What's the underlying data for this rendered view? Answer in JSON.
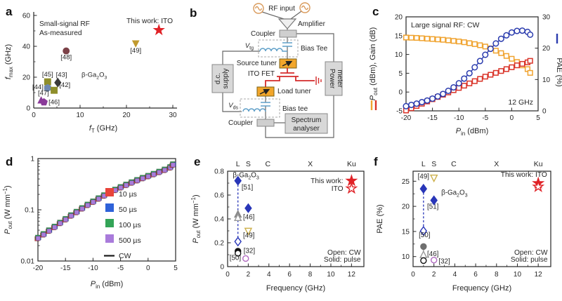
{
  "panels": {
    "a": {
      "letter": "a"
    },
    "b": {
      "letter": "b"
    },
    "c": {
      "letter": "c"
    },
    "d": {
      "letter": "d"
    },
    "e": {
      "letter": "e"
    },
    "f": {
      "letter": "f"
    }
  },
  "diagram": {
    "rf_input": "RF input",
    "amplifier": "Amplifier",
    "coupler_top": "Coupler",
    "bias_tee_top": "Bias Tee",
    "v_tg_main": "V",
    "v_tg_sub": "tg",
    "source_tuner": "Source tuner",
    "ito_fet": "ITO FET",
    "load_tuner": "Load tuner",
    "bias_tee_bottom": "Bias tee",
    "v_ds_main": "V",
    "v_ds_sub": "ds",
    "coupler_bottom": "Coupler",
    "spectrum_line1": "Spectrum",
    "spectrum_line2": "analyser",
    "power_line1": "Power",
    "power_line2": "meter",
    "dc_line1": "d.c.",
    "dc_line2": "supply"
  },
  "chart_data": [
    {
      "panel": "a",
      "type": "scatter",
      "title_lines": [
        "Small-signal RF",
        "As-measured"
      ],
      "legend_text": "This work: ITO",
      "xlabel": [
        {
          "t": "f",
          "i": true
        },
        {
          "t": "T",
          "sub": true
        },
        {
          "t": " (GHz)"
        }
      ],
      "ylabel": [
        {
          "t": "f",
          "i": true
        },
        {
          "t": "max",
          "sub": true
        },
        {
          "t": " (GHz)"
        }
      ],
      "xlim": [
        0,
        30
      ],
      "ylim": [
        0,
        60
      ],
      "xticks": [
        0,
        10,
        20,
        30
      ],
      "xminor": [
        5,
        15,
        25
      ],
      "yticks": [
        0,
        20,
        40,
        60
      ],
      "yminor": [
        10,
        30,
        50
      ],
      "annotation": {
        "x": 10.3,
        "y": 20.3,
        "segs": [
          {
            "t": "β-Ga"
          },
          {
            "t": "2",
            "sub": true
          },
          {
            "t": "O"
          },
          {
            "t": "3",
            "sub": true
          }
        ]
      },
      "points": [
        {
          "x": 7,
          "y": 37,
          "m": "circle",
          "c": "#7b4147",
          "f": 1,
          "ref": "[48]",
          "lx": 7,
          "ly": 31.5,
          "la": "middle"
        },
        {
          "x": 22,
          "y": 42,
          "m": "triangle-down",
          "c": "#c19a2e",
          "f": 1,
          "ref": "[49]",
          "lx": 22,
          "ly": 36,
          "la": "middle"
        },
        {
          "x": 3,
          "y": 17,
          "m": "square",
          "c": "#8e8e2b",
          "f": 1,
          "ref": "[45]",
          "lx": 3,
          "ly": 20.5,
          "la": "middle"
        },
        {
          "x": 5.2,
          "y": 16.5,
          "m": "diamond",
          "c": "#3a3a3a",
          "f": 1,
          "ref": "[43]",
          "lx": 6,
          "ly": 20.3,
          "la": "middle"
        },
        {
          "x": 3,
          "y": 13,
          "m": "hexagon",
          "c": "#6e88b0",
          "f": 1,
          "ref": "[44]",
          "lx": 2.1,
          "ly": 12.2,
          "la": "end"
        },
        {
          "x": 4.4,
          "y": 11.5,
          "m": "square",
          "c": "#8e8e2b",
          "f": 1,
          "ref": "[42]",
          "lx": 5.5,
          "ly": 13.6,
          "la": "start"
        },
        {
          "x": 1.6,
          "y": 4.8,
          "m": "triangle-up",
          "c": "#8a3a99",
          "f": 1,
          "ref": "[47]",
          "lx": 0.9,
          "ly": 8.3,
          "la": "start"
        },
        {
          "x": 2.2,
          "y": 3.8,
          "m": "pentagon",
          "c": "#8a3a99",
          "f": 1,
          "ref": "[46]",
          "lx": 3.2,
          "ly": 2.4,
          "la": "start"
        },
        {
          "x": 27,
          "y": 50.5,
          "m": "star",
          "c": "#e02227",
          "f": 1
        }
      ]
    },
    {
      "panel": "c",
      "type": "line",
      "title": "Large signal RF: CW",
      "annotation_br": "12 GHz",
      "xlabel": [
        {
          "t": "P",
          "i": true
        },
        {
          "t": "in",
          "sub": true
        },
        {
          "t": " (dBm)"
        }
      ],
      "ylabel_left": [
        {
          "t": "P",
          "i": true
        },
        {
          "t": "out",
          "sub": true
        },
        {
          "t": " (dBm), Gain (dB)"
        }
      ],
      "ylabel_right": [
        {
          "t": "PAE (%)"
        }
      ],
      "xlim": [
        -20,
        5
      ],
      "ylim_left": [
        -5,
        20
      ],
      "ylim_right": [
        0,
        30
      ],
      "xticks": [
        -20,
        -15,
        -10,
        -5,
        0,
        5
      ],
      "yticks_left": [
        -5,
        0,
        5,
        10,
        15,
        20
      ],
      "yticks_right": [
        0,
        10,
        20,
        30
      ],
      "x": [
        -20,
        -19,
        -18,
        -17,
        -16,
        -15,
        -14,
        -13,
        -12,
        -11,
        -10,
        -9,
        -8,
        -7,
        -6,
        -5,
        -4,
        -3,
        -2,
        -1,
        0,
        1,
        2,
        3,
        3.5
      ],
      "series": [
        {
          "name": "Gain (dB)",
          "axis": "left",
          "marker": "square",
          "color": "#f0a32f",
          "values": [
            14.5,
            14.45,
            14.4,
            14.3,
            14.2,
            14.1,
            14.0,
            13.9,
            13.75,
            13.6,
            13.45,
            13.25,
            13.0,
            12.75,
            12.45,
            12.1,
            11.6,
            11.0,
            10.35,
            9.6,
            8.85,
            8.0,
            7.1,
            6.1,
            5.1
          ]
        },
        {
          "name": "Pout (dBm)",
          "axis": "left",
          "marker": "square",
          "color": "#d93328",
          "values": [
            -4.9,
            -4.3,
            -3.7,
            -3.1,
            -2.5,
            -1.9,
            -1.3,
            -0.7,
            -0.1,
            0.5,
            1.1,
            1.7,
            2.3,
            2.9,
            3.5,
            4.1,
            4.6,
            5.1,
            5.6,
            6.1,
            6.6,
            7.1,
            7.5,
            7.9,
            8.3
          ]
        },
        {
          "name": "PAE (%)",
          "axis": "right",
          "marker": "circle",
          "color": "#2b3cae",
          "values": [
            1.5,
            1.9,
            2.3,
            2.8,
            3.3,
            3.9,
            4.6,
            5.4,
            6.4,
            7.5,
            8.8,
            10.3,
            12.0,
            13.9,
            15.9,
            17.9,
            19.8,
            21.5,
            23.0,
            24.1,
            25.0,
            25.5,
            25.6,
            25.2,
            24.3
          ]
        }
      ]
    },
    {
      "panel": "d",
      "type": "line-log",
      "xlabel": [
        {
          "t": "P",
          "i": true
        },
        {
          "t": "in",
          "sub": true
        },
        {
          "t": " (dBm)"
        }
      ],
      "ylabel": [
        {
          "t": "P",
          "i": true
        },
        {
          "t": "out",
          "sub": true
        },
        {
          "t": " (W mm"
        },
        {
          "t": "−1",
          "sup": true
        },
        {
          "t": ")"
        }
      ],
      "xlim": [
        -20,
        5
      ],
      "ylim": [
        0.01,
        1
      ],
      "xticks": [
        -20,
        -15,
        -10,
        -5,
        0,
        5
      ],
      "yticks": [
        {
          "v": 0.01,
          "l": "0.01"
        },
        {
          "v": 0.1,
          "l": "0.1"
        },
        {
          "v": 1,
          "l": "1"
        }
      ],
      "x": [
        -20,
        -19,
        -18,
        -17,
        -16,
        -15,
        -14,
        -13,
        -12,
        -11,
        -10,
        -9,
        -8,
        -7,
        -6,
        -5,
        -4,
        -3,
        -2,
        -1,
        0,
        1,
        2,
        3,
        4,
        4.5
      ],
      "values": [
        0.028,
        0.033,
        0.039,
        0.046,
        0.055,
        0.065,
        0.077,
        0.09,
        0.106,
        0.124,
        0.143,
        0.165,
        0.189,
        0.215,
        0.243,
        0.273,
        0.305,
        0.339,
        0.375,
        0.413,
        0.452,
        0.495,
        0.545,
        0.6,
        0.67,
        0.76
      ],
      "legend": [
        {
          "label": "10 µs",
          "color": "#e8443a"
        },
        {
          "label": "50 µs",
          "color": "#2e62d9"
        },
        {
          "label": "100 µs",
          "color": "#33a457"
        },
        {
          "label": "500 µs",
          "color": "#a97bdb"
        },
        {
          "label": "CW",
          "color": "#1a1a1a",
          "line": true
        }
      ]
    },
    {
      "panel": "e",
      "type": "scatter",
      "bands": [
        {
          "label": "L",
          "x": 1
        },
        {
          "label": "S",
          "x": 2
        },
        {
          "label": "C",
          "x": 3.9
        },
        {
          "label": "X",
          "x": 8
        },
        {
          "label": "Ku",
          "x": 12
        }
      ],
      "xlabel": [
        {
          "t": "Frequency (GHz)"
        }
      ],
      "ylabel": [
        {
          "t": "P",
          "i": true
        },
        {
          "t": "out",
          "sub": true
        },
        {
          "t": " (W mm"
        },
        {
          "t": "−1",
          "sup": true
        },
        {
          "t": ")"
        }
      ],
      "xlim": [
        0,
        13.2
      ],
      "ylim": [
        0,
        0.8
      ],
      "xticks": [
        0,
        2,
        4,
        6,
        8,
        10,
        12
      ],
      "xminor": [
        1,
        3,
        5,
        7,
        9,
        11
      ],
      "yticks": [
        0,
        0.2,
        0.4,
        0.6,
        0.8
      ],
      "yminor": [
        0.1,
        0.3,
        0.5,
        0.7
      ],
      "annotation": {
        "x": 0.5,
        "y": 0.75,
        "segs": [
          {
            "t": "β-Ga"
          },
          {
            "t": "2",
            "sub": true
          },
          {
            "t": "O"
          },
          {
            "t": "3",
            "sub": true
          }
        ]
      },
      "connectors": [
        {
          "x": 1,
          "y1": 0.72,
          "y2": 0.21,
          "c": "#2936b8",
          "dash": true
        }
      ],
      "points": [
        {
          "x": 1,
          "y": 0.72,
          "m": "diamond",
          "c": "#2936b8",
          "f": 1,
          "ref": "[51]",
          "lx": 1.35,
          "ly": 0.648,
          "la": "start"
        },
        {
          "x": 1,
          "y": 0.21,
          "m": "diamond",
          "c": "#2936b8",
          "f": 0
        },
        {
          "x": 2,
          "y": 0.49,
          "m": "diamond",
          "c": "#2936b8",
          "f": 1
        },
        {
          "x": 1,
          "y": 0.437,
          "m": "triangle-up",
          "c": "#8a8a8a",
          "f": 1
        },
        {
          "x": 1,
          "y": 0.408,
          "m": "triangle-up",
          "c": "#9a9a9a",
          "f": 0,
          "ref": "[46]",
          "lx": 1.5,
          "ly": 0.398,
          "la": "start"
        },
        {
          "x": 2,
          "y": 0.3,
          "m": "triangle-down",
          "c": "#cdb04a",
          "f": 0,
          "ref": "[49]",
          "lx": 1.5,
          "ly": 0.243,
          "la": "start"
        },
        {
          "x": 1,
          "y": 0.13,
          "m": "circle",
          "c": "#111111",
          "f": 1,
          "ref": "[32]",
          "lx": 1.55,
          "ly": 0.116,
          "la": "start"
        },
        {
          "x": 1,
          "y": 0.112,
          "m": "circle",
          "c": "#111111",
          "f": 0
        },
        {
          "x": 1.75,
          "y": 0.068,
          "m": "circle",
          "c": "#b069c0",
          "f": 0,
          "ref": "[50]",
          "lx": 1.3,
          "ly": 0.056,
          "la": "end"
        },
        {
          "x": 12,
          "y": 0.72,
          "m": "star",
          "c": "#e02227",
          "f": 1
        },
        {
          "x": 12,
          "y": 0.655,
          "m": "star",
          "c": "#e02227",
          "f": 0
        }
      ],
      "legend": [
        {
          "t": "This work:",
          "x": 11.2,
          "y": 0.7
        },
        {
          "t": "ITO",
          "x": 11.2,
          "y": 0.635
        }
      ],
      "notes": [
        {
          "t": "Open: CW",
          "x": 12.9,
          "y": 0.1
        },
        {
          "t": "Solid: pulse",
          "x": 12.9,
          "y": 0.04
        }
      ]
    },
    {
      "panel": "f",
      "type": "scatter",
      "bands": [
        {
          "label": "L",
          "x": 1
        },
        {
          "label": "S",
          "x": 2
        },
        {
          "label": "C",
          "x": 3.9
        },
        {
          "label": "X",
          "x": 8
        },
        {
          "label": "Ku",
          "x": 12
        }
      ],
      "xlabel": [
        {
          "t": "Frequency (GHz)"
        }
      ],
      "ylabel": [
        {
          "t": "PAE (%)"
        }
      ],
      "xlim": [
        0,
        13.2
      ],
      "ylim": [
        8,
        27
      ],
      "xticks": [
        0,
        2,
        4,
        6,
        8,
        10,
        12
      ],
      "xminor": [
        1,
        3,
        5,
        7,
        9,
        11
      ],
      "yticks": [
        10,
        15,
        20,
        25
      ],
      "yminor": [
        12.5,
        17.5,
        22.5
      ],
      "annotation": {
        "x": 2.7,
        "y": 22.3,
        "segs": [
          {
            "t": "β-Ga"
          },
          {
            "t": "2",
            "sub": true
          },
          {
            "t": "O"
          },
          {
            "t": "3",
            "sub": true
          }
        ]
      },
      "connectors": [
        {
          "x": 1,
          "y1": 23.5,
          "y2": 15.1,
          "c": "#2936b8",
          "dash": true
        },
        {
          "x": 1,
          "y1": 12.0,
          "y2": 10.3,
          "c": "#8a8a8a",
          "dash": false
        }
      ],
      "points": [
        {
          "x": 2,
          "y": 25.7,
          "m": "triangle-down",
          "c": "#cdb04a",
          "f": 0,
          "ref": "[49]",
          "lx": 1.55,
          "ly": 25.5,
          "la": "end"
        },
        {
          "x": 1,
          "y": 23.5,
          "m": "diamond",
          "c": "#2936b8",
          "f": 1,
          "ref": "[51]",
          "lx": 1.35,
          "ly": 19.5,
          "la": "start"
        },
        {
          "x": 1,
          "y": 15.1,
          "m": "diamond",
          "c": "#2936b8",
          "f": 0
        },
        {
          "x": 2,
          "y": 21.2,
          "m": "diamond",
          "c": "#2936b8",
          "f": 1
        },
        {
          "x": 1,
          "y": 12.0,
          "m": "circle",
          "c": "#6f6f6f",
          "f": 1,
          "ref": "[50]",
          "lx": 0.55,
          "ly": 13.9,
          "la": "start"
        },
        {
          "x": 1,
          "y": 10.3,
          "m": "triangle-up",
          "c": "#9a9a9a",
          "f": 0,
          "ref": "[46]",
          "lx": 1.35,
          "ly": 10.1,
          "la": "start"
        },
        {
          "x": 1,
          "y": 9.2,
          "m": "circle",
          "c": "#111111",
          "f": 0
        },
        {
          "x": 2,
          "y": 9.3,
          "m": "circle",
          "c": "#b069c0",
          "f": 0,
          "ref": "[32]",
          "lx": 2.45,
          "ly": 8.6,
          "la": "start"
        },
        {
          "x": 12,
          "y": 24.6,
          "m": "star",
          "c": "#e02227",
          "f": 1
        },
        {
          "x": 12,
          "y": 23.9,
          "m": "star",
          "c": "#e02227",
          "f": 0
        }
      ],
      "legend": [
        {
          "t": "This work: ITO",
          "x": 12.85,
          "y": 25.9
        }
      ],
      "notes": [
        {
          "t": "Open: CW",
          "x": 12.9,
          "y": 10.4
        },
        {
          "t": "Solid: pulse",
          "x": 12.9,
          "y": 9.0
        }
      ]
    }
  ]
}
